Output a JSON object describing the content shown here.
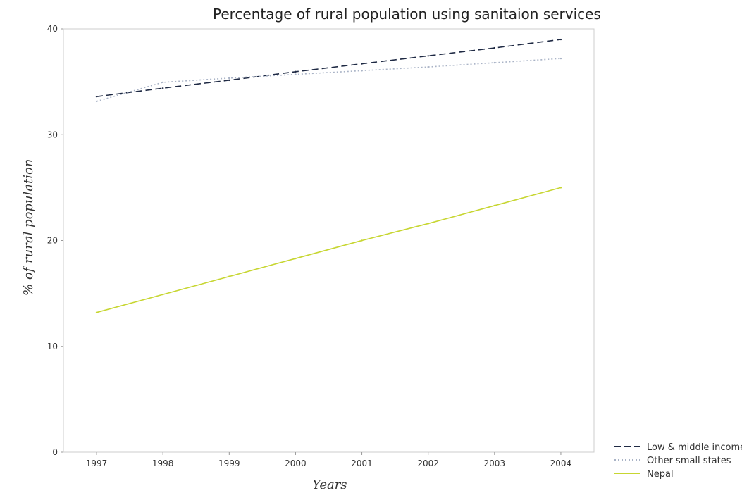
{
  "chart_data": {
    "type": "line",
    "title": "Percentage of rural population using sanitaion services",
    "xlabel": "Years",
    "ylabel": "% of rural population",
    "categories": [
      "1997",
      "1998",
      "1999",
      "2000",
      "2001",
      "2002",
      "2003",
      "2004"
    ],
    "ylim": [
      0,
      40
    ],
    "yticks": [
      0,
      10,
      20,
      30,
      40
    ],
    "grid": false,
    "legend_position": "bottom-right",
    "series": [
      {
        "name": "Low & middle income",
        "color": "#1f2a44",
        "style": "dashed",
        "values": [
          33.6,
          34.4,
          35.15,
          35.95,
          36.7,
          37.45,
          38.2,
          39.0
        ]
      },
      {
        "name": "Other small states",
        "color": "#a9b3c6",
        "style": "dotted",
        "values": [
          33.15,
          34.95,
          35.35,
          35.7,
          36.05,
          36.4,
          36.8,
          37.2
        ]
      },
      {
        "name": "Nepal",
        "color": "#c7d631",
        "style": "solid",
        "values": [
          13.2,
          14.9,
          16.6,
          18.3,
          20.0,
          21.6,
          23.3,
          25.0
        ]
      }
    ]
  }
}
